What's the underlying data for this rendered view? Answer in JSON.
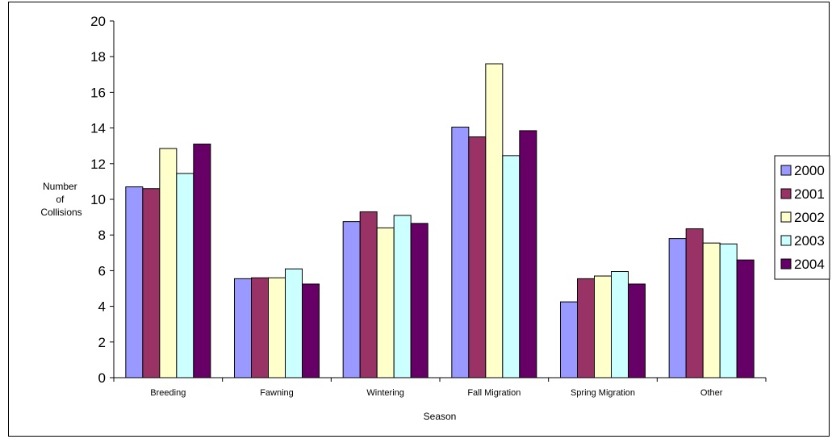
{
  "chart_data": {
    "type": "bar",
    "categories": [
      "Breeding",
      "Fawning",
      "Wintering",
      "Fall Migration",
      "Spring Migration",
      "Other"
    ],
    "series": [
      {
        "name": "2000",
        "values": [
          10.7,
          5.55,
          8.75,
          14.05,
          4.25,
          7.8
        ],
        "color": "#9999FF"
      },
      {
        "name": "2001",
        "values": [
          10.6,
          5.6,
          9.3,
          13.5,
          5.55,
          8.35
        ],
        "color": "#993366"
      },
      {
        "name": "2002",
        "values": [
          12.85,
          5.6,
          8.4,
          17.6,
          5.7,
          7.55
        ],
        "color": "#FFFFCC"
      },
      {
        "name": "2003",
        "values": [
          11.45,
          6.1,
          9.1,
          12.45,
          5.95,
          7.5
        ],
        "color": "#CCFFFF"
      },
      {
        "name": "2004",
        "values": [
          13.1,
          5.25,
          8.65,
          13.85,
          5.25,
          6.6
        ],
        "color": "#660066"
      }
    ],
    "title": "",
    "xlabel": "Season",
    "ylabel_lines": [
      "Number",
      "of",
      "Collisions"
    ],
    "ylim": [
      0,
      20
    ],
    "yticks": [
      0,
      2,
      4,
      6,
      8,
      10,
      12,
      14,
      16,
      18,
      20
    ],
    "grid": false,
    "legend_position": "right"
  }
}
